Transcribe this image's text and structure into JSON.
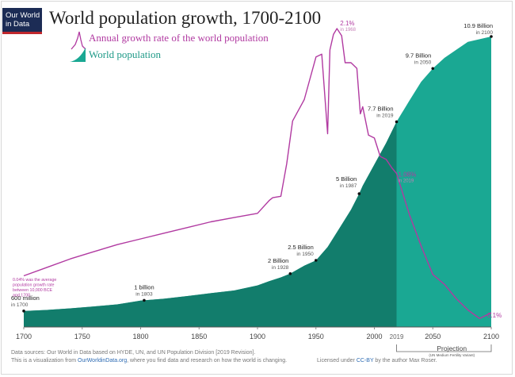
{
  "header": {
    "logo_line1": "Our World",
    "logo_line2": "in Data",
    "title": "World population growth, 1700-2100"
  },
  "legend": {
    "growth_label": "Annual growth rate of the world population",
    "population_label": "World population"
  },
  "colors": {
    "population_fill": "#1aa893",
    "population_dark": "#127d6c",
    "growth_line": "#b13aa1",
    "label_grey": "#555555"
  },
  "chart_data": {
    "type": "area",
    "x_ticks": [
      "1700",
      "1750",
      "1800",
      "1850",
      "1900",
      "1950",
      "2000",
      "2050",
      "2100"
    ],
    "x_extra_tick": "2019",
    "xlim": [
      1700,
      2100
    ],
    "series": [
      {
        "name": "World population",
        "unit": "billion",
        "x": [
          1700,
          1720,
          1740,
          1760,
          1780,
          1800,
          1820,
          1840,
          1860,
          1880,
          1900,
          1910,
          1920,
          1928,
          1940,
          1950,
          1960,
          1970,
          1980,
          1987,
          1990,
          2000,
          2010,
          2019,
          2030,
          2040,
          2050,
          2060,
          2070,
          2080,
          2090,
          2100
        ],
        "values": [
          0.6,
          0.64,
          0.7,
          0.77,
          0.85,
          0.99,
          1.06,
          1.16,
          1.27,
          1.37,
          1.56,
          1.72,
          1.86,
          2.0,
          2.3,
          2.5,
          3.0,
          3.7,
          4.4,
          5.0,
          5.3,
          6.1,
          6.9,
          7.7,
          8.5,
          9.2,
          9.7,
          10.1,
          10.4,
          10.7,
          10.8,
          10.9
        ]
      },
      {
        "name": "Annual growth rate of the world population",
        "unit": "percent",
        "x": [
          1700,
          1720,
          1740,
          1760,
          1780,
          1800,
          1820,
          1840,
          1860,
          1880,
          1900,
          1910,
          1913,
          1920,
          1925,
          1930,
          1940,
          1950,
          1955,
          1960,
          1962,
          1965,
          1968,
          1972,
          1975,
          1980,
          1985,
          1988,
          1990,
          1995,
          2000,
          2005,
          2010,
          2015,
          2019,
          2030,
          2040,
          2050,
          2060,
          2070,
          2080,
          2090,
          2100
        ],
        "values": [
          0.36,
          0.42,
          0.48,
          0.53,
          0.58,
          0.62,
          0.66,
          0.7,
          0.74,
          0.77,
          0.8,
          0.89,
          0.91,
          0.92,
          1.15,
          1.45,
          1.6,
          1.9,
          1.92,
          1.36,
          1.95,
          2.06,
          2.1,
          2.05,
          1.86,
          1.86,
          1.82,
          1.5,
          1.55,
          1.35,
          1.33,
          1.2,
          1.18,
          1.12,
          1.08,
          0.79,
          0.57,
          0.37,
          0.3,
          0.2,
          0.12,
          0.06,
          0.1
        ]
      }
    ],
    "population_labels": [
      {
        "year": 1700,
        "value": 0.6,
        "label": "600 million",
        "sub": "in 1700"
      },
      {
        "year": 1803,
        "value": 1.0,
        "label": "1 billion",
        "sub": "in 1803"
      },
      {
        "year": 1928,
        "value": 2.0,
        "label": "2 Billion",
        "sub": "in 1928"
      },
      {
        "year": 1950,
        "value": 2.5,
        "label": "2.5 Billion",
        "sub": "in 1950"
      },
      {
        "year": 1987,
        "value": 5.0,
        "label": "5 Billion",
        "sub": "in 1987"
      },
      {
        "year": 2019,
        "value": 7.7,
        "label": "7.7 Billion",
        "sub": "in 2019"
      },
      {
        "year": 2050,
        "value": 9.7,
        "label": "9.7 Billion",
        "sub": "in 2050"
      },
      {
        "year": 2100,
        "value": 10.9,
        "label": "10.9 Billion",
        "sub": "in 2100"
      }
    ],
    "growth_labels": [
      {
        "year": 1968,
        "value": 2.1,
        "label": "2.1%",
        "sub": "in 1968"
      },
      {
        "year": 2019,
        "value": 1.08,
        "label": "1.08%",
        "sub": "in 2019"
      },
      {
        "year": 2100,
        "value": 0.1,
        "label": "0.1%",
        "sub": ""
      }
    ],
    "early_note": [
      "0.04% was the average",
      "population growth rate",
      "between 10,000 BCE",
      "and 1700"
    ],
    "projection_label": "Projection",
    "projection_sub": "(UN Medium Fertility Variant)",
    "projection_start": 2019
  },
  "footer": {
    "line1": "Data sources: Our World in Data based on HYDE, UN, and UN Population Division [2019 Revision].",
    "line2_pre": "This is a visualization from ",
    "line2_link": "OurWorldinData.org",
    "line2_post": ", where you find data and research on how the world is changing.",
    "license_pre": "Licensed under ",
    "license_link": "CC-BY",
    "license_post": " by the author Max Roser."
  }
}
